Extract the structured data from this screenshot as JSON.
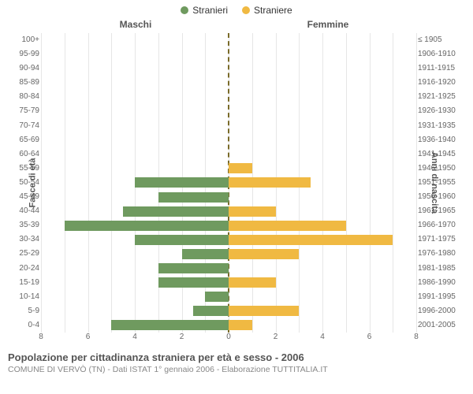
{
  "legend": {
    "male": {
      "label": "Stranieri",
      "color": "#6f9a5f"
    },
    "female": {
      "label": "Straniere",
      "color": "#f0b942"
    }
  },
  "headers": {
    "male": "Maschi",
    "female": "Femmine"
  },
  "axes": {
    "left_label": "Fasce di età",
    "right_label": "Anni di nascita",
    "xmax": 8,
    "xticks": [
      8,
      6,
      4,
      2,
      0,
      2,
      4,
      6,
      8
    ],
    "grid_color": "#e6e6e6",
    "centerline_color": "#7a6b2a"
  },
  "rows": [
    {
      "age": "100+",
      "birth": "≤ 1905",
      "m": 0,
      "f": 0
    },
    {
      "age": "95-99",
      "birth": "1906-1910",
      "m": 0,
      "f": 0
    },
    {
      "age": "90-94",
      "birth": "1911-1915",
      "m": 0,
      "f": 0
    },
    {
      "age": "85-89",
      "birth": "1916-1920",
      "m": 0,
      "f": 0
    },
    {
      "age": "80-84",
      "birth": "1921-1925",
      "m": 0,
      "f": 0
    },
    {
      "age": "75-79",
      "birth": "1926-1930",
      "m": 0,
      "f": 0
    },
    {
      "age": "70-74",
      "birth": "1931-1935",
      "m": 0,
      "f": 0
    },
    {
      "age": "65-69",
      "birth": "1936-1940",
      "m": 0,
      "f": 0
    },
    {
      "age": "60-64",
      "birth": "1941-1945",
      "m": 0,
      "f": 0
    },
    {
      "age": "55-59",
      "birth": "1946-1950",
      "m": 0,
      "f": 1
    },
    {
      "age": "50-54",
      "birth": "1951-1955",
      "m": 4,
      "f": 3.5
    },
    {
      "age": "45-49",
      "birth": "1956-1960",
      "m": 3,
      "f": 0
    },
    {
      "age": "40-44",
      "birth": "1961-1965",
      "m": 4.5,
      "f": 2
    },
    {
      "age": "35-39",
      "birth": "1966-1970",
      "m": 7,
      "f": 5
    },
    {
      "age": "30-34",
      "birth": "1971-1975",
      "m": 4,
      "f": 7
    },
    {
      "age": "25-29",
      "birth": "1976-1980",
      "m": 2,
      "f": 3
    },
    {
      "age": "20-24",
      "birth": "1981-1985",
      "m": 3,
      "f": 0
    },
    {
      "age": "15-19",
      "birth": "1986-1990",
      "m": 3,
      "f": 2
    },
    {
      "age": "10-14",
      "birth": "1991-1995",
      "m": 1,
      "f": 0
    },
    {
      "age": "5-9",
      "birth": "1996-2000",
      "m": 1.5,
      "f": 3
    },
    {
      "age": "0-4",
      "birth": "2001-2005",
      "m": 5,
      "f": 1
    }
  ],
  "caption": "Popolazione per cittadinanza straniera per età e sesso - 2006",
  "subcaption": "COMUNE DI VERVÒ (TN) - Dati ISTAT 1° gennaio 2006 - Elaborazione TUTTITALIA.IT",
  "background_color": "#ffffff"
}
